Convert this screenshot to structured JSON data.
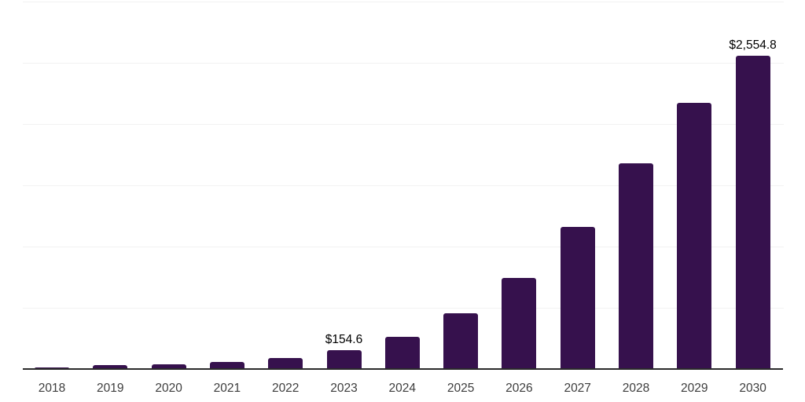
{
  "chart_data": {
    "type": "bar",
    "title": "",
    "xlabel": "",
    "ylabel": "",
    "categories": [
      "2018",
      "2019",
      "2020",
      "2021",
      "2022",
      "2023",
      "2024",
      "2025",
      "2026",
      "2027",
      "2028",
      "2029",
      "2030"
    ],
    "values": [
      16,
      30,
      40,
      60,
      90,
      154.6,
      263,
      455,
      744,
      1160,
      1679,
      2172,
      2554.8
    ],
    "data_labels": {
      "2023": "$154.6",
      "2030": "$2,554.8"
    },
    "ylim": [
      0,
      3000
    ],
    "gridline_interval": 500,
    "grid": "horizontal",
    "legend_position": "none",
    "bar_color": "#36114d",
    "gridline_color": "#f2f2f2",
    "axis_color": "#2b2b2b",
    "x_label_color": "#3d3d3d",
    "data_label_color": "#000000"
  }
}
